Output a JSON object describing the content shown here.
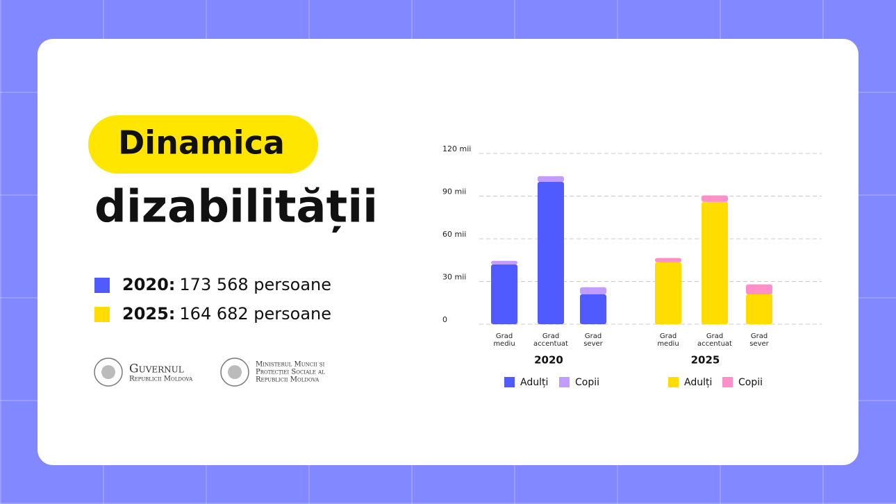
{
  "header": {
    "title_highlight": "Dinamica",
    "title": "dizabilității"
  },
  "summary": [
    {
      "year": "2020:",
      "text": "173 568 persoane",
      "color": "#4f5bff"
    },
    {
      "year": "2025:",
      "text": "164 682 persoane",
      "color": "#ffdd00"
    }
  ],
  "logos": [
    {
      "lines": [
        "Guvernul",
        "Republicii Moldova"
      ]
    },
    {
      "lines": [
        "Ministerul Muncii și",
        "Protecției Sociale al",
        "Republicii Moldova"
      ]
    }
  ],
  "chart_data": {
    "type": "bar",
    "stacked": true,
    "grid": true,
    "ylim": [
      0,
      120
    ],
    "yticks": [
      0,
      {
        "value": 30,
        "label": "30 mii"
      },
      {
        "value": 60,
        "label": "60 mii"
      },
      {
        "value": 90,
        "label": "90 mii"
      },
      {
        "value": 120,
        "label": "120 mii"
      }
    ],
    "groups": [
      {
        "name": "2020",
        "categories": [
          "Grad mediu",
          "Grad accentuat",
          "Grad sever"
        ],
        "series": [
          {
            "name": "Adulți",
            "color": "#4f5bff",
            "values": [
              42,
              100,
              21
            ]
          },
          {
            "name": "Copii",
            "color": "#c39cff",
            "values": [
              2.5,
              4,
              5
            ]
          }
        ]
      },
      {
        "name": "2025",
        "categories": [
          "Grad mediu",
          "Grad accentuat",
          "Grad sever"
        ],
        "series": [
          {
            "name": "Adulți",
            "color": "#ffdd00",
            "values": [
              43.5,
              86,
              21
            ]
          },
          {
            "name": "Copii",
            "color": "#ff8fc8",
            "values": [
              3,
              4.5,
              7
            ]
          }
        ]
      }
    ]
  }
}
